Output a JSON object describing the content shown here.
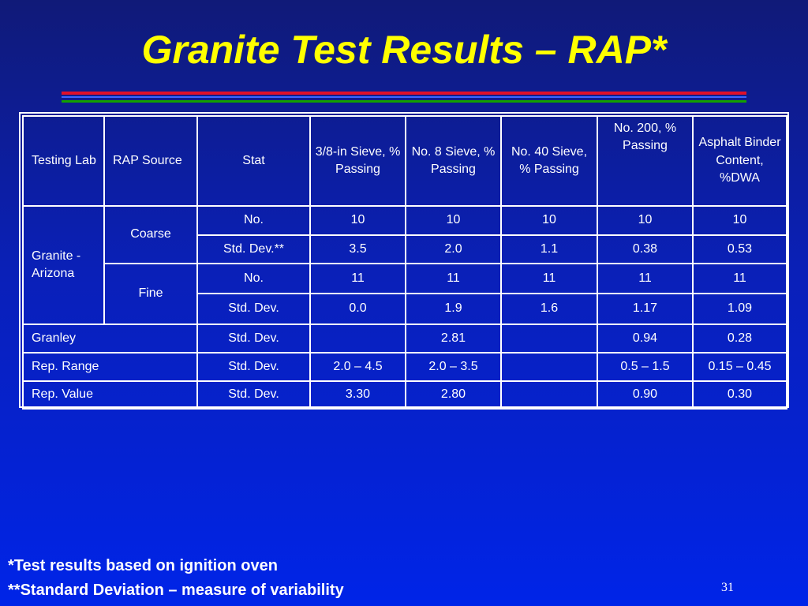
{
  "title": "Granite Test Results – RAP*",
  "table": {
    "headers": {
      "testing_lab": "Testing Lab",
      "rap_source": "RAP Source",
      "stat": "Stat",
      "sieve_38": "3/8-in Sieve, % Passing",
      "no8": "No.  8 Sieve, % Passing",
      "no40": "No.  40 Sieve, % Passing",
      "no200": "No. 200, % Passing",
      "binder": "Asphalt Binder Content, %DWA"
    },
    "granite_az": {
      "lab": "Granite - Arizona",
      "coarse": {
        "source": "Coarse",
        "rows": [
          [
            "No.",
            "10",
            "10",
            "10",
            "10",
            "10"
          ],
          [
            "Std. Dev.**",
            "3.5",
            "2.0",
            "1.1",
            "0.38",
            "0.53"
          ]
        ]
      },
      "fine": {
        "source": "Fine",
        "rows": [
          [
            "No.",
            "11",
            "11",
            "11",
            "11",
            "11"
          ],
          [
            "Std. Dev.",
            "0.0",
            "1.9",
            "1.6",
            "1.17",
            "1.09"
          ]
        ]
      }
    },
    "summary_rows": [
      [
        "Granley",
        "Std. Dev.",
        "",
        "2.81",
        "",
        "0.94",
        "0.28"
      ],
      [
        "Rep. Range",
        "Std. Dev.",
        "2.0 – 4.5",
        "2.0 – 3.5",
        "",
        "0.5 – 1.5",
        "0.15 – 0.45"
      ],
      [
        "Rep. Value",
        "Std. Dev.",
        "3.30",
        "2.80",
        "",
        "0.90",
        "0.30"
      ]
    ]
  },
  "footnotes": {
    "one": "*Test results based on ignition oven",
    "two": "**Standard Deviation – measure of variability"
  },
  "page_number": "31",
  "colors": {
    "title": "#ffff00",
    "background_top": "#101a78",
    "background_bottom": "#0024e8",
    "rule_red": "#e0102a",
    "rule_blue": "#3c64ff",
    "rule_green": "#14a000",
    "text": "#ffffff"
  }
}
